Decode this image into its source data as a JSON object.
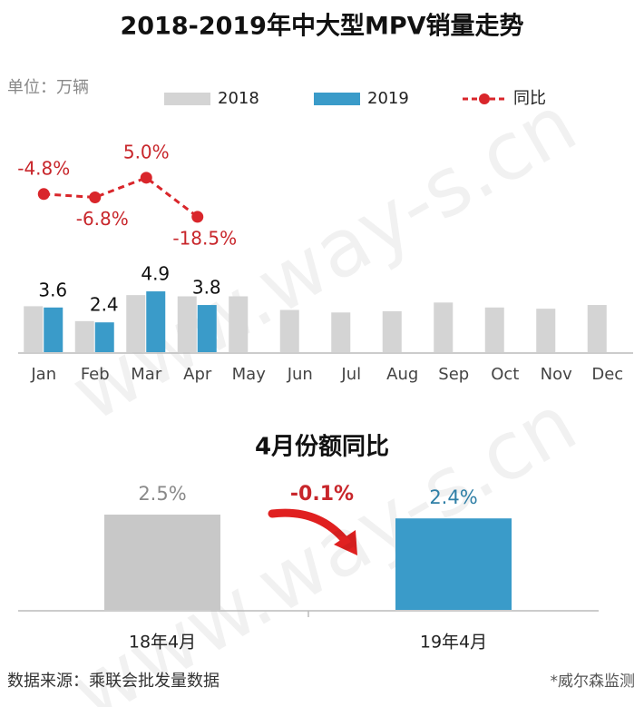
{
  "chart_data": [
    {
      "type": "bar",
      "title": "2018-2019年中大型MPV销量走势",
      "unit_label": "单位：万辆",
      "categories": [
        "Jan",
        "Feb",
        "Mar",
        "Apr",
        "May",
        "Jun",
        "Jul",
        "Aug",
        "Sep",
        "Oct",
        "Nov",
        "Dec"
      ],
      "series": [
        {
          "name": "2018",
          "color": "#d4d4d4",
          "values": [
            3.7,
            2.5,
            4.6,
            4.5,
            4.5,
            3.4,
            3.2,
            3.3,
            4.0,
            3.6,
            3.5,
            3.8
          ]
        },
        {
          "name": "2019",
          "color": "#3a9bc9",
          "values": [
            3.6,
            2.4,
            4.9,
            3.8,
            null,
            null,
            null,
            null,
            null,
            null,
            null,
            null
          ]
        },
        {
          "name": "同比",
          "type": "line",
          "axis": "y2",
          "color": "#d9262b",
          "values": [
            -4.8,
            -6.8,
            5.0,
            -18.5,
            null,
            null,
            null,
            null,
            null,
            null,
            null,
            null
          ],
          "value_labels": [
            "-4.8%",
            "-6.8%",
            "5.0%",
            "-18.5%",
            null,
            null,
            null,
            null,
            null,
            null,
            null,
            null
          ]
        }
      ],
      "ylim": [
        0,
        6
      ],
      "y2lim": [
        -30,
        30
      ]
    },
    {
      "type": "bar",
      "title": "4月份额同比",
      "categories": [
        "18年4月",
        "19年4月"
      ],
      "values": [
        2.5,
        2.4
      ],
      "value_labels": [
        "2.5%",
        "2.4%"
      ],
      "colors": [
        "#c8c8c8",
        "#3a9bc9"
      ],
      "label_colors": [
        "#8a8a8a",
        "#2f7fa6"
      ],
      "annotation": "-0.1%",
      "ylim": [
        0,
        3
      ]
    }
  ],
  "footer": {
    "source": "数据来源：乘联会批发量数据",
    "note": "*威尔森监测"
  },
  "watermark": "www.way-s.cn"
}
